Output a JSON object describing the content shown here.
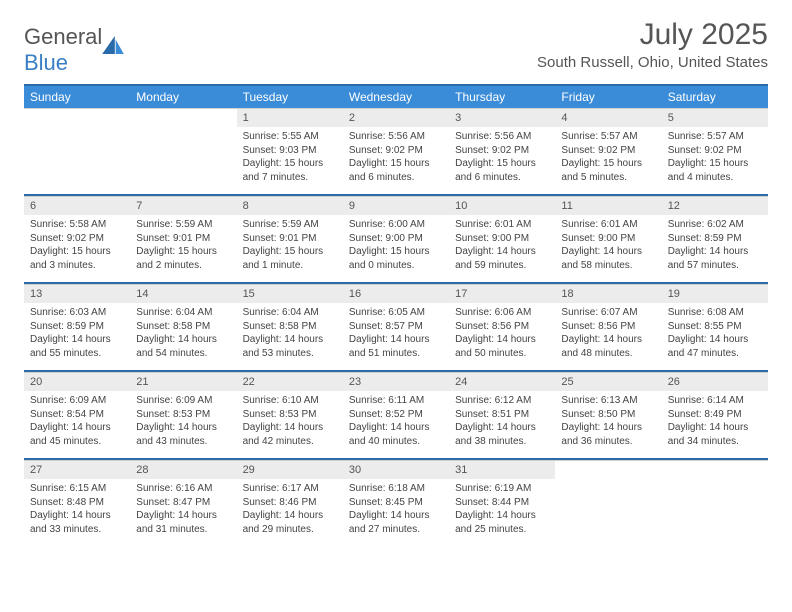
{
  "logo": {
    "part1": "General",
    "part2": "Blue"
  },
  "title": "July 2025",
  "location": "South Russell, Ohio, United States",
  "colors": {
    "header_bg": "#3a8bd8",
    "header_border": "#2b6aa8",
    "daynum_bg": "#ececec",
    "text": "#444444"
  },
  "day_names": [
    "Sunday",
    "Monday",
    "Tuesday",
    "Wednesday",
    "Thursday",
    "Friday",
    "Saturday"
  ],
  "weeks": [
    [
      null,
      null,
      {
        "n": "1",
        "sr": "5:55 AM",
        "ss": "9:03 PM",
        "dl": "15 hours and 7 minutes."
      },
      {
        "n": "2",
        "sr": "5:56 AM",
        "ss": "9:02 PM",
        "dl": "15 hours and 6 minutes."
      },
      {
        "n": "3",
        "sr": "5:56 AM",
        "ss": "9:02 PM",
        "dl": "15 hours and 6 minutes."
      },
      {
        "n": "4",
        "sr": "5:57 AM",
        "ss": "9:02 PM",
        "dl": "15 hours and 5 minutes."
      },
      {
        "n": "5",
        "sr": "5:57 AM",
        "ss": "9:02 PM",
        "dl": "15 hours and 4 minutes."
      }
    ],
    [
      {
        "n": "6",
        "sr": "5:58 AM",
        "ss": "9:02 PM",
        "dl": "15 hours and 3 minutes."
      },
      {
        "n": "7",
        "sr": "5:59 AM",
        "ss": "9:01 PM",
        "dl": "15 hours and 2 minutes."
      },
      {
        "n": "8",
        "sr": "5:59 AM",
        "ss": "9:01 PM",
        "dl": "15 hours and 1 minute."
      },
      {
        "n": "9",
        "sr": "6:00 AM",
        "ss": "9:00 PM",
        "dl": "15 hours and 0 minutes."
      },
      {
        "n": "10",
        "sr": "6:01 AM",
        "ss": "9:00 PM",
        "dl": "14 hours and 59 minutes."
      },
      {
        "n": "11",
        "sr": "6:01 AM",
        "ss": "9:00 PM",
        "dl": "14 hours and 58 minutes."
      },
      {
        "n": "12",
        "sr": "6:02 AM",
        "ss": "8:59 PM",
        "dl": "14 hours and 57 minutes."
      }
    ],
    [
      {
        "n": "13",
        "sr": "6:03 AM",
        "ss": "8:59 PM",
        "dl": "14 hours and 55 minutes."
      },
      {
        "n": "14",
        "sr": "6:04 AM",
        "ss": "8:58 PM",
        "dl": "14 hours and 54 minutes."
      },
      {
        "n": "15",
        "sr": "6:04 AM",
        "ss": "8:58 PM",
        "dl": "14 hours and 53 minutes."
      },
      {
        "n": "16",
        "sr": "6:05 AM",
        "ss": "8:57 PM",
        "dl": "14 hours and 51 minutes."
      },
      {
        "n": "17",
        "sr": "6:06 AM",
        "ss": "8:56 PM",
        "dl": "14 hours and 50 minutes."
      },
      {
        "n": "18",
        "sr": "6:07 AM",
        "ss": "8:56 PM",
        "dl": "14 hours and 48 minutes."
      },
      {
        "n": "19",
        "sr": "6:08 AM",
        "ss": "8:55 PM",
        "dl": "14 hours and 47 minutes."
      }
    ],
    [
      {
        "n": "20",
        "sr": "6:09 AM",
        "ss": "8:54 PM",
        "dl": "14 hours and 45 minutes."
      },
      {
        "n": "21",
        "sr": "6:09 AM",
        "ss": "8:53 PM",
        "dl": "14 hours and 43 minutes."
      },
      {
        "n": "22",
        "sr": "6:10 AM",
        "ss": "8:53 PM",
        "dl": "14 hours and 42 minutes."
      },
      {
        "n": "23",
        "sr": "6:11 AM",
        "ss": "8:52 PM",
        "dl": "14 hours and 40 minutes."
      },
      {
        "n": "24",
        "sr": "6:12 AM",
        "ss": "8:51 PM",
        "dl": "14 hours and 38 minutes."
      },
      {
        "n": "25",
        "sr": "6:13 AM",
        "ss": "8:50 PM",
        "dl": "14 hours and 36 minutes."
      },
      {
        "n": "26",
        "sr": "6:14 AM",
        "ss": "8:49 PM",
        "dl": "14 hours and 34 minutes."
      }
    ],
    [
      {
        "n": "27",
        "sr": "6:15 AM",
        "ss": "8:48 PM",
        "dl": "14 hours and 33 minutes."
      },
      {
        "n": "28",
        "sr": "6:16 AM",
        "ss": "8:47 PM",
        "dl": "14 hours and 31 minutes."
      },
      {
        "n": "29",
        "sr": "6:17 AM",
        "ss": "8:46 PM",
        "dl": "14 hours and 29 minutes."
      },
      {
        "n": "30",
        "sr": "6:18 AM",
        "ss": "8:45 PM",
        "dl": "14 hours and 27 minutes."
      },
      {
        "n": "31",
        "sr": "6:19 AM",
        "ss": "8:44 PM",
        "dl": "14 hours and 25 minutes."
      },
      null,
      null
    ]
  ],
  "labels": {
    "sunrise": "Sunrise:",
    "sunset": "Sunset:",
    "daylight": "Daylight:"
  }
}
